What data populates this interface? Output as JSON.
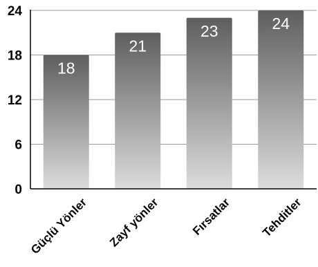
{
  "chart_data": {
    "type": "bar",
    "categories": [
      "Güçlü Yönler",
      "Zayf yönler",
      "Fırsatlar",
      "Tehditler"
    ],
    "values": [
      18,
      21,
      23,
      24
    ],
    "data_labels": [
      "18",
      "21",
      "23",
      "24"
    ],
    "ylim": [
      0,
      24
    ],
    "yticks": [
      "0",
      "6",
      "12",
      "18",
      "24"
    ],
    "grid": true,
    "bar_gradient": [
      "#5e5e5e",
      "#dcdcdc"
    ]
  }
}
